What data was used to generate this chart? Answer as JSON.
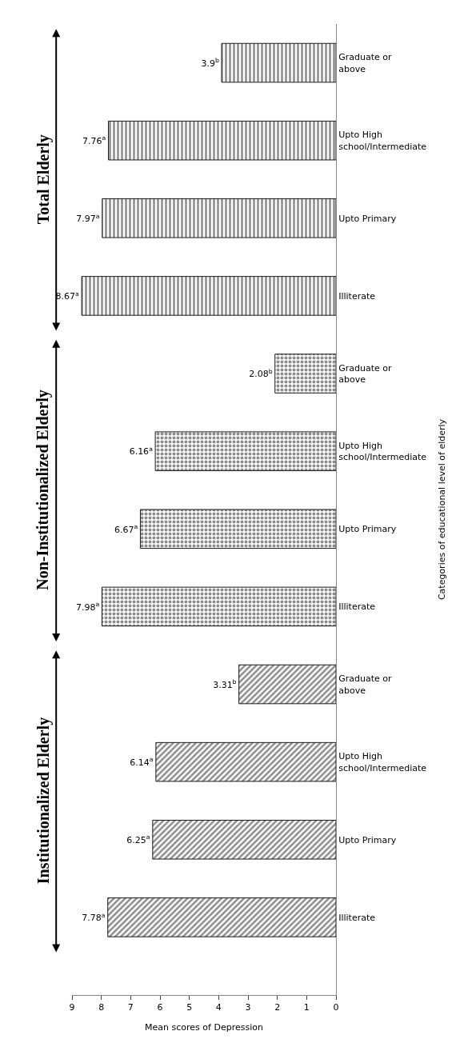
{
  "chart_data": {
    "type": "bar",
    "orientation": "horizontal",
    "xlabel": "Mean scores of Depression",
    "ylabel": "Categories of educational level of elderly",
    "categories": [
      "Graduate or above",
      "Upto High school/Intermediate",
      "Upto Primary",
      "Illiterate",
      "Graduate or above",
      "Upto High school/Intermediate",
      "Upto Primary",
      "Illiterate",
      "Graduate or above",
      "Upto High school/Intermediate",
      "Upto Primary",
      "Illiterate"
    ],
    "series": [
      {
        "color": "#1a1a1a",
        "values": [
          3.9,
          7.76,
          7.97,
          8.67,
          null,
          null,
          null,
          null,
          null,
          null,
          null,
          null
        ],
        "value_labels": [
          "3.9$^{b}$",
          "7.76$^{a}$",
          "7.97$^{a}$",
          "8.67$^{a}$",
          null,
          null,
          null,
          null,
          null,
          null,
          null,
          null
        ]
      },
      {
        "color": "#1a1a1a",
        "values": [
          null,
          null,
          null,
          null,
          2.08,
          6.16,
          6.67,
          7.98,
          null,
          null,
          null,
          null
        ],
        "value_labels": [
          null,
          null,
          null,
          null,
          "2.08$^{b}$",
          "6.16$^{a}$",
          "6.67$^{a}$",
          "7.98$^{a}$",
          null,
          null,
          null,
          null
        ]
      },
      {
        "color": "#1a1a1a",
        "values": [
          null,
          null,
          null,
          null,
          null,
          null,
          null,
          null,
          3.31,
          6.14,
          6.25,
          7.78
        ],
        "value_labels": [
          null,
          null,
          null,
          null,
          null,
          null,
          null,
          null,
          "3.31$^{b}$",
          "6.14$^{a}$",
          "6.25$^{a}$",
          "7.78$^{a}$"
        ]
      }
    ],
    "annotations": [
      "Total Elderly",
      "Non-Institutionalized Elderly",
      "Institutionalized Elderly"
    ],
    "xlim": [
      9,
      0
    ],
    "xticks": [
      0,
      1,
      2,
      3,
      4,
      5,
      6,
      7,
      8,
      9
    ],
    "legend": false
  }
}
